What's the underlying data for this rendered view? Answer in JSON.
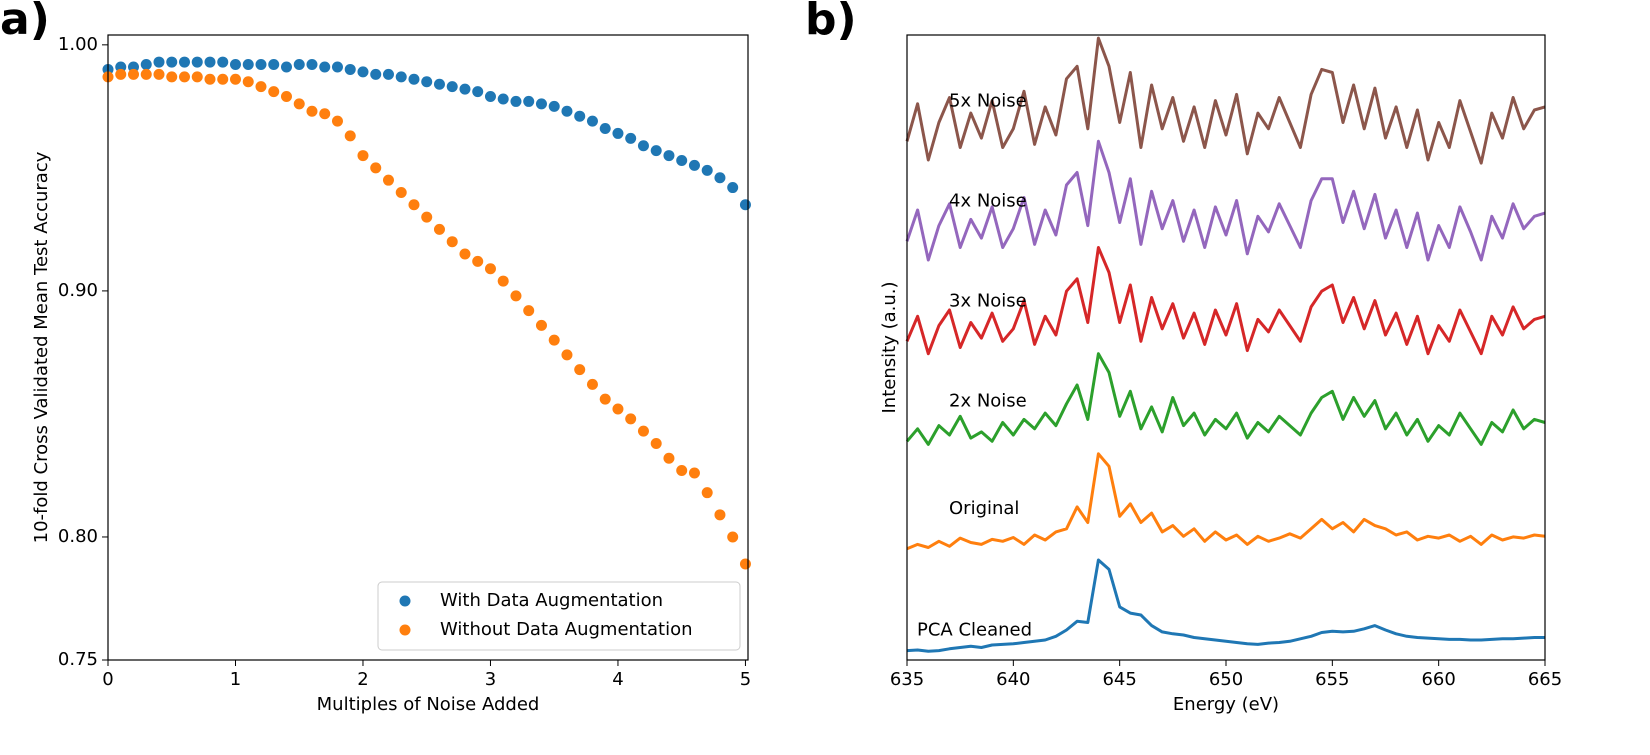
{
  "chart_data": [
    {
      "type": "scatter",
      "panel_label": "a)",
      "xlabel": "Multiples of Noise Added",
      "ylabel": "10-fold Cross Validated Mean Test Accuracy",
      "x": [
        0,
        0.1,
        0.2,
        0.3,
        0.4,
        0.5,
        0.6,
        0.7,
        0.8,
        0.9,
        1,
        1.1,
        1.2,
        1.3,
        1.4,
        1.5,
        1.6,
        1.7,
        1.8,
        1.9,
        2,
        2.1,
        2.2,
        2.3,
        2.4,
        2.5,
        2.6,
        2.7,
        2.8,
        2.9,
        3,
        3.1,
        3.2,
        3.3,
        3.4,
        3.5,
        3.6,
        3.7,
        3.8,
        3.9,
        4,
        4.1,
        4.2,
        4.3,
        4.4,
        4.5,
        4.6,
        4.7,
        4.8,
        4.9,
        5
      ],
      "series": [
        {
          "name": "With Data Augmentation",
          "color": "#1f77b4",
          "values": [
            0.99,
            0.991,
            0.991,
            0.992,
            0.993,
            0.993,
            0.993,
            0.993,
            0.993,
            0.993,
            0.992,
            0.992,
            0.992,
            0.992,
            0.991,
            0.992,
            0.992,
            0.991,
            0.991,
            0.99,
            0.989,
            0.988,
            0.988,
            0.987,
            0.986,
            0.985,
            0.984,
            0.983,
            0.982,
            0.981,
            0.979,
            0.978,
            0.977,
            0.977,
            0.976,
            0.975,
            0.973,
            0.971,
            0.969,
            0.966,
            0.964,
            0.962,
            0.959,
            0.957,
            0.955,
            0.953,
            0.951,
            0.949,
            0.946,
            0.942,
            0.935
          ]
        },
        {
          "name": "Without Data Augmentation",
          "color": "#ff7f0e",
          "values": [
            0.987,
            0.988,
            0.988,
            0.988,
            0.988,
            0.987,
            0.987,
            0.987,
            0.986,
            0.986,
            0.986,
            0.985,
            0.983,
            0.981,
            0.979,
            0.976,
            0.973,
            0.972,
            0.969,
            0.963,
            0.955,
            0.95,
            0.945,
            0.94,
            0.935,
            0.93,
            0.925,
            0.92,
            0.915,
            0.912,
            0.909,
            0.904,
            0.898,
            0.892,
            0.886,
            0.88,
            0.874,
            0.868,
            0.862,
            0.856,
            0.852,
            0.848,
            0.843,
            0.838,
            0.832,
            0.827,
            0.826,
            0.818,
            0.809,
            0.8,
            0.789
          ]
        }
      ],
      "xlim": [
        0,
        5.02
      ],
      "xticks": [
        0,
        1,
        2,
        3,
        4,
        5
      ],
      "ylim": [
        0.75,
        1.004
      ],
      "yticks": [
        0.75,
        {
          "value": 0.8,
          "label": "0.80"
        },
        {
          "value": 0.9,
          "label": "0.90"
        },
        {
          "value": 1,
          "label": "1.00"
        }
      ],
      "legend": "lower right"
    },
    {
      "type": "line",
      "panel_label": "b)",
      "xlabel": "Energy (eV)",
      "ylabel": "Intensity (a.u.)",
      "x": [
        635,
        635.5,
        636,
        636.5,
        637,
        637.5,
        638,
        638.5,
        639,
        639.5,
        640,
        640.5,
        641,
        641.5,
        642,
        642.5,
        643,
        643.5,
        644,
        644.5,
        645,
        645.5,
        646,
        646.5,
        647,
        647.5,
        648,
        648.5,
        649,
        649.5,
        650,
        650.5,
        651,
        651.5,
        652,
        652.5,
        653,
        653.5,
        654,
        654.5,
        655,
        655.5,
        656,
        656.5,
        657,
        657.5,
        658,
        658.5,
        659,
        659.5,
        660,
        660.5,
        661,
        661.5,
        662,
        662.5,
        663,
        663.5,
        664,
        664.5,
        665
      ],
      "series": [
        {
          "name": "PCA Cleaned",
          "color": "#1f77b4",
          "values": [
            0.15,
            0.16,
            0.14,
            0.15,
            0.18,
            0.2,
            0.22,
            0.2,
            0.24,
            0.25,
            0.26,
            0.28,
            0.3,
            0.32,
            0.38,
            0.48,
            0.62,
            0.6,
            1.6,
            1.45,
            0.85,
            0.75,
            0.72,
            0.55,
            0.45,
            0.42,
            0.4,
            0.36,
            0.34,
            0.32,
            0.3,
            0.28,
            0.26,
            0.25,
            0.27,
            0.28,
            0.3,
            0.34,
            0.38,
            0.44,
            0.46,
            0.45,
            0.46,
            0.5,
            0.55,
            0.48,
            0.42,
            0.38,
            0.36,
            0.35,
            0.34,
            0.33,
            0.33,
            0.32,
            0.32,
            0.33,
            0.34,
            0.34,
            0.35,
            0.36,
            0.36
          ]
        },
        {
          "name": "Original",
          "color": "#ff7f0e",
          "values": [
            1.78,
            1.85,
            1.8,
            1.9,
            1.82,
            1.95,
            1.88,
            1.85,
            1.93,
            1.9,
            1.96,
            1.85,
            2.0,
            1.92,
            2.05,
            2.1,
            2.45,
            2.2,
            3.3,
            3.1,
            2.3,
            2.5,
            2.2,
            2.35,
            2.05,
            2.15,
            1.98,
            2.1,
            1.9,
            2.05,
            1.92,
            2.0,
            1.85,
            1.98,
            1.9,
            1.95,
            2.02,
            1.95,
            2.1,
            2.25,
            2.1,
            2.2,
            2.05,
            2.25,
            2.15,
            2.1,
            2.0,
            2.05,
            1.92,
            1.98,
            1.95,
            2.0,
            1.9,
            1.98,
            1.85,
            2.0,
            1.92,
            1.97,
            1.95,
            2.0,
            1.98
          ]
        },
        {
          "name": "2x Noise",
          "color": "#2ca02c",
          "values": [
            3.5,
            3.7,
            3.45,
            3.75,
            3.6,
            3.9,
            3.55,
            3.65,
            3.5,
            3.8,
            3.6,
            3.85,
            3.7,
            3.95,
            3.75,
            4.1,
            4.4,
            3.85,
            4.9,
            4.6,
            3.9,
            4.3,
            3.7,
            4.05,
            3.65,
            4.2,
            3.75,
            3.95,
            3.6,
            3.85,
            3.7,
            3.95,
            3.55,
            3.8,
            3.65,
            3.9,
            3.75,
            3.6,
            3.95,
            4.2,
            4.3,
            3.85,
            4.2,
            3.9,
            4.15,
            3.7,
            3.95,
            3.6,
            3.85,
            3.5,
            3.75,
            3.6,
            3.95,
            3.7,
            3.45,
            3.8,
            3.65,
            4.0,
            3.7,
            3.85,
            3.8
          ]
        },
        {
          "name": "3x Noise",
          "color": "#d62728",
          "values": [
            5.1,
            5.5,
            4.9,
            5.35,
            5.6,
            5.0,
            5.4,
            5.15,
            5.55,
            5.1,
            5.3,
            5.75,
            5.05,
            5.5,
            5.2,
            5.9,
            6.1,
            5.4,
            6.6,
            6.2,
            5.4,
            6.0,
            5.1,
            5.8,
            5.3,
            5.7,
            5.15,
            5.55,
            5.05,
            5.6,
            5.2,
            5.7,
            4.95,
            5.45,
            5.25,
            5.6,
            5.35,
            5.1,
            5.65,
            5.9,
            6.0,
            5.4,
            5.8,
            5.3,
            5.75,
            5.2,
            5.55,
            5.05,
            5.5,
            4.9,
            5.35,
            5.1,
            5.6,
            5.25,
            4.9,
            5.5,
            5.2,
            5.65,
            5.3,
            5.45,
            5.5
          ]
        },
        {
          "name": "4x Noise",
          "color": "#9467bd",
          "values": [
            6.7,
            7.2,
            6.4,
            6.95,
            7.3,
            6.6,
            7.05,
            6.75,
            7.25,
            6.6,
            6.9,
            7.4,
            6.65,
            7.2,
            6.8,
            7.6,
            7.8,
            6.95,
            8.3,
            7.8,
            7.0,
            7.7,
            6.65,
            7.5,
            6.9,
            7.35,
            6.7,
            7.2,
            6.6,
            7.25,
            6.8,
            7.35,
            6.5,
            7.1,
            6.85,
            7.3,
            6.95,
            6.6,
            7.35,
            7.7,
            7.7,
            7.0,
            7.5,
            6.9,
            7.45,
            6.75,
            7.2,
            6.6,
            7.15,
            6.4,
            6.95,
            6.6,
            7.25,
            6.85,
            6.4,
            7.1,
            6.75,
            7.3,
            6.9,
            7.1,
            7.15
          ]
        },
        {
          "name": "5x Noise",
          "color": "#8c564b",
          "values": [
            8.3,
            8.9,
            8.0,
            8.6,
            9.0,
            8.2,
            8.75,
            8.35,
            8.95,
            8.2,
            8.5,
            9.1,
            8.25,
            8.85,
            8.4,
            9.3,
            9.5,
            8.5,
            9.95,
            9.5,
            8.6,
            9.4,
            8.2,
            9.2,
            8.5,
            9.0,
            8.3,
            8.85,
            8.2,
            8.95,
            8.4,
            9.05,
            8.1,
            8.75,
            8.5,
            9.0,
            8.6,
            8.2,
            9.05,
            9.45,
            9.4,
            8.6,
            9.2,
            8.5,
            9.15,
            8.35,
            8.85,
            8.2,
            8.8,
            8.0,
            8.6,
            8.2,
            8.95,
            8.45,
            7.95,
            8.75,
            8.35,
            9.0,
            8.5,
            8.8,
            8.85
          ]
        }
      ],
      "xlim": [
        635,
        665
      ],
      "xticks": [
        635,
        640,
        645,
        650,
        655,
        660,
        665
      ],
      "ylim": [
        0,
        10
      ]
    }
  ]
}
